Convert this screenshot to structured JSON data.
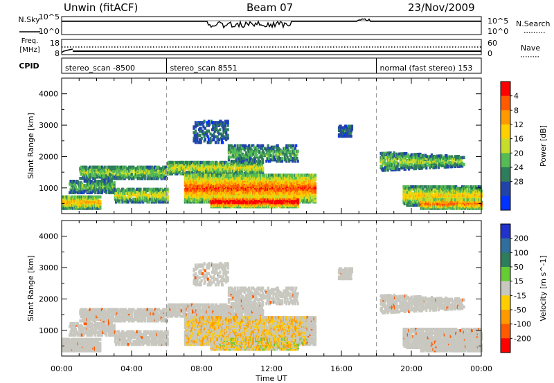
{
  "header": {
    "station": "Unwin (fitACF)",
    "beam": "Beam 07",
    "date": "23/Nov/2009"
  },
  "strip": {
    "nsky_label": "N.Sky",
    "nsearch_label": "N.Search",
    "noise_ticks_left": [
      "10^5",
      "10^0"
    ],
    "noise_ticks_right": [
      "10^5",
      "10^0"
    ],
    "freq_label_line1": "Freq.",
    "freq_label_line2": "[MHz]",
    "freq_ticks": [
      "18",
      "8"
    ],
    "nave_label": "Nave",
    "nave_ticks": [
      "60",
      "0"
    ],
    "cpid_label": "CPID",
    "cpid_segments": [
      {
        "label": "stereo_scan -8500",
        "start_hour": 0
      },
      {
        "label": "stereo_scan 8551",
        "start_hour": 6
      },
      {
        "label": "normal (fast stereo) 153",
        "start_hour": 18
      }
    ]
  },
  "chart_data": [
    {
      "type": "heatmap",
      "parameter": "Power",
      "ylabel": "Slant Range [km]",
      "xlabel": "Time UT",
      "x_ticks": [
        "00:00",
        "04:00",
        "08:00",
        "12:00",
        "16:00",
        "20:00",
        "00:00"
      ],
      "x_tick_hours": [
        0,
        4,
        8,
        12,
        16,
        20,
        24
      ],
      "xlim_hours": [
        0,
        24
      ],
      "ylim_km": [
        180,
        4500
      ],
      "y_ticks": [
        1000,
        2000,
        3000,
        4000
      ],
      "colorbar": {
        "label": "Power [dB]",
        "ticks": [
          "4",
          "8",
          "12",
          "16",
          "20",
          "24",
          "28"
        ],
        "colors": [
          "#0033ff",
          "#2244aa",
          "#2e7d5b",
          "#55bb55",
          "#c8dc2a",
          "#ffd000",
          "#ff9900",
          "#ff5a00",
          "#ff0000"
        ]
      },
      "scan_boundaries_hours": [
        6,
        18
      ]
    },
    {
      "type": "heatmap",
      "parameter": "Velocity",
      "ylabel": "Slant Range [km]",
      "xlabel": "Time UT",
      "x_ticks": [
        "00:00",
        "04:00",
        "08:00",
        "12:00",
        "16:00",
        "20:00",
        "00:00"
      ],
      "x_tick_hours": [
        0,
        4,
        8,
        12,
        16,
        20,
        24
      ],
      "xlim_hours": [
        0,
        24
      ],
      "ylim_km": [
        180,
        4500
      ],
      "y_ticks": [
        1000,
        2000,
        3000,
        4000
      ],
      "colorbar": {
        "label": "Velocity [m s^-1]",
        "ticks": [
          "200",
          "100",
          "50",
          "15",
          "-15",
          "-50",
          "-100",
          "-200"
        ],
        "colors": [
          "#2233cc",
          "#2e6f9e",
          "#2e7d5b",
          "#66cc33",
          "#c8c8c0",
          "#ffcc00",
          "#ff9900",
          "#ff5a00",
          "#ff0000"
        ]
      },
      "scan_boundaries_hours": [
        6,
        18
      ]
    }
  ]
}
